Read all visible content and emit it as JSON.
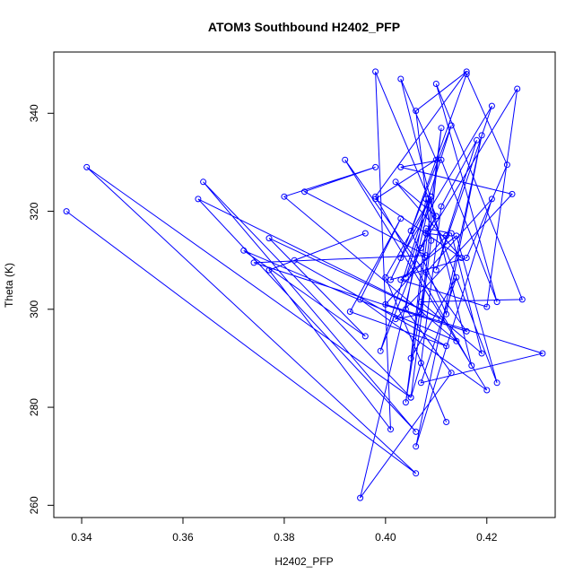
{
  "chart_data": {
    "type": "line",
    "title": "ATOM3 Southbound H2402_PFP",
    "xlabel": "H2402_PFP",
    "ylabel": "Theta (K)",
    "xlim": [
      0.3345,
      0.4335
    ],
    "ylim": [
      257.5,
      352.5
    ],
    "xticks": [
      0.34,
      0.36,
      0.38,
      0.4,
      0.42
    ],
    "xtick_labels": [
      "0.34",
      "0.36",
      "0.38",
      "0.40",
      "0.42"
    ],
    "yticks": [
      260,
      280,
      300,
      320,
      340
    ],
    "ytick_labels": [
      "260",
      "280",
      "300",
      "320",
      "340"
    ],
    "grid": false,
    "legend": "none",
    "color": "#0000ff",
    "series": [
      {
        "marker": "open-circle",
        "x": [
          0.337,
          0.406,
          0.341,
          0.405,
          0.364,
          0.406,
          0.363,
          0.411,
          0.377,
          0.396,
          0.372,
          0.414,
          0.38,
          0.398,
          0.384,
          0.408,
          0.374,
          0.416,
          0.392,
          0.42,
          0.395,
          0.403,
          0.393,
          0.412,
          0.382,
          0.396,
          0.377,
          0.401,
          0.398,
          0.41,
          0.402,
          0.415,
          0.398,
          0.41,
          0.403,
          0.417,
          0.398,
          0.416,
          0.406,
          0.409,
          0.405,
          0.407,
          0.411,
          0.418,
          0.41,
          0.421,
          0.403,
          0.413,
          0.399,
          0.407,
          0.426,
          0.42,
          0.403,
          0.414,
          0.422,
          0.408,
          0.404,
          0.413,
          0.395,
          0.409,
          0.401,
          0.416,
          0.424,
          0.416,
          0.405,
          0.412,
          0.419,
          0.406,
          0.421,
          0.408,
          0.404,
          0.411,
          0.407,
          0.402,
          0.425,
          0.403,
          0.411,
          0.422,
          0.41,
          0.427,
          0.407,
          0.419,
          0.413,
          0.408,
          0.405,
          0.414,
          0.407,
          0.431,
          0.4,
          0.412,
          0.408,
          0.41,
          0.404,
          0.409,
          0.4,
          0.412
        ],
        "y": [
          320,
          266.5,
          329,
          282,
          326,
          275,
          322.5,
          298,
          314.5,
          294.5,
          312,
          293.5,
          323,
          329,
          324,
          311,
          309.5,
          295.5,
          330.5,
          283.5,
          302,
          318.5,
          299.5,
          292.5,
          310,
          315.5,
          308,
          275.5,
          348.5,
          319,
          326,
          310.5,
          322.5,
          330.5,
          347,
          288.5,
          323,
          348.5,
          340.5,
          314,
          282,
          289,
          321,
          334.5,
          308,
          341.5,
          310.5,
          337.5,
          291.5,
          312.5,
          345,
          300.5,
          306,
          315,
          285,
          322.5,
          300,
          287,
          261.5,
          323,
          306,
          310.5,
          329.5,
          348,
          316,
          299,
          335.5,
          272,
          322.5,
          307.5,
          281,
          337,
          299,
          298,
          323.5,
          329,
          330.5,
          301.5,
          346,
          302,
          301.5,
          291,
          315.5,
          316.5,
          290,
          306.5,
          285,
          291,
          301,
          315,
          315.5,
          319,
          306.5,
          323,
          306.5,
          277
        ]
      }
    ]
  }
}
